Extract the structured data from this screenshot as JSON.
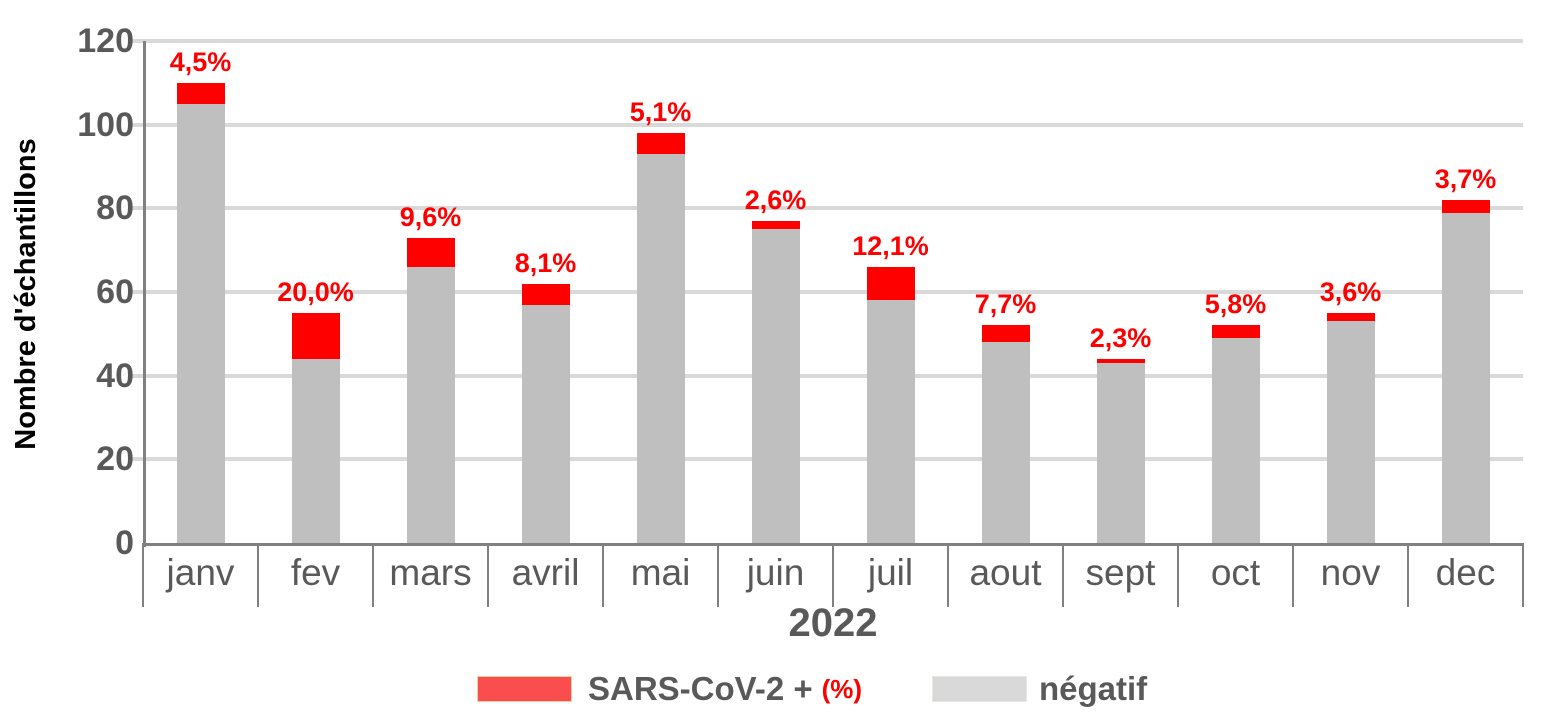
{
  "y_axis": {
    "title": "Nombre d'échantillons",
    "tick_labels": [
      "0",
      "20",
      "40",
      "60",
      "80",
      "100",
      "120"
    ]
  },
  "x_axis": {
    "year_label": "2022"
  },
  "legend": {
    "items": [
      {
        "label": "SARS-CoV-2 +",
        "suffix": "(%)",
        "swatch_color": "#fa4d4d"
      },
      {
        "label": "négatif",
        "suffix": "",
        "swatch_color": "#d9d9d9"
      }
    ]
  },
  "chart_data": {
    "type": "bar",
    "stacked": true,
    "title": "",
    "xlabel": "2022",
    "ylabel": "Nombre d'échantillons",
    "categories": [
      "janv",
      "fev",
      "mars",
      "avril",
      "mai",
      "juin",
      "juil",
      "aout",
      "sept",
      "oct",
      "nov",
      "dec"
    ],
    "series": [
      {
        "name": "négatif",
        "color": "#bfbfbf",
        "values": [
          105,
          44,
          66,
          57,
          93,
          75,
          58,
          48,
          43,
          49,
          53,
          79
        ]
      },
      {
        "name": "SARS-CoV-2 +",
        "color": "#ff0000",
        "values": [
          5,
          11,
          7,
          5,
          5,
          2,
          8,
          4,
          1,
          3,
          2,
          3
        ]
      }
    ],
    "totals": [
      110,
      55,
      73,
      62,
      98,
      77,
      66,
      52,
      44,
      52,
      55,
      82
    ],
    "percent_labels": [
      "4,5%",
      "20,0%",
      "9,6%",
      "8,1%",
      "5,1%",
      "2,6%",
      "12,1%",
      "7,7%",
      "2,3%",
      "5,8%",
      "3,6%",
      "3,7%"
    ],
    "ylim": [
      0,
      120
    ],
    "yticks": [
      0,
      20,
      40,
      60,
      80,
      100,
      120
    ],
    "grid": true,
    "legend_position": "bottom"
  }
}
